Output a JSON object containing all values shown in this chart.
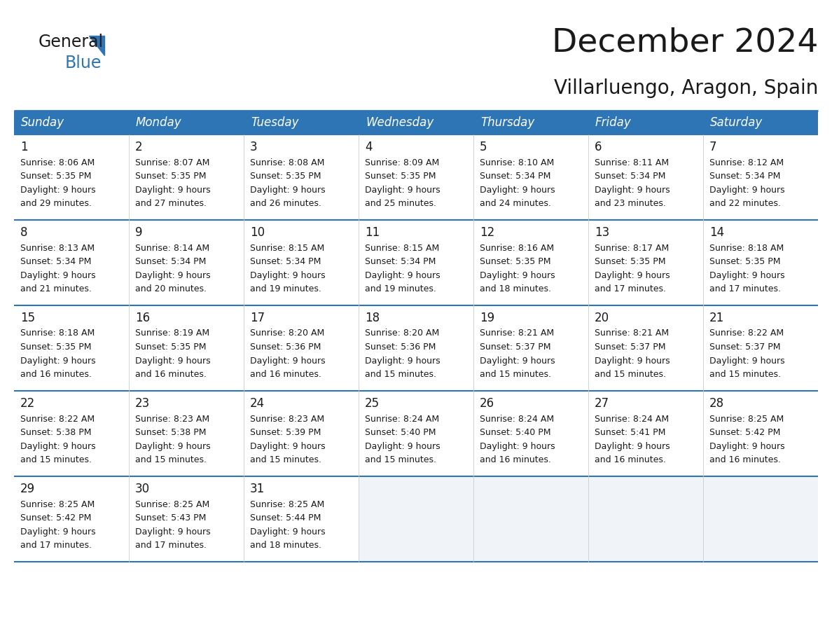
{
  "title": "December 2024",
  "subtitle": "Villarluengo, Aragon, Spain",
  "header_color": "#2E75B6",
  "header_text_color": "#FFFFFF",
  "grid_line_color": "#2E75B6",
  "cell_bg_even": "#FFFFFF",
  "cell_bg_odd": "#EEF3F8",
  "empty_cell_bg": "#F0F0F0",
  "text_color": "#1a1a1a",
  "logo_color_general": "#1a1a1a",
  "logo_color_blue": "#2E75B6",
  "day_names": [
    "Sunday",
    "Monday",
    "Tuesday",
    "Wednesday",
    "Thursday",
    "Friday",
    "Saturday"
  ],
  "title_fontsize": 34,
  "subtitle_fontsize": 20,
  "day_header_fontsize": 12,
  "cell_day_fontsize": 12,
  "cell_text_fontsize": 9,
  "weeks": [
    {
      "days": [
        {
          "date": 1,
          "sunrise": "8:06 AM",
          "sunset": "5:35 PM",
          "daylight_hours": 9,
          "daylight_minutes": 29
        },
        {
          "date": 2,
          "sunrise": "8:07 AM",
          "sunset": "5:35 PM",
          "daylight_hours": 9,
          "daylight_minutes": 27
        },
        {
          "date": 3,
          "sunrise": "8:08 AM",
          "sunset": "5:35 PM",
          "daylight_hours": 9,
          "daylight_minutes": 26
        },
        {
          "date": 4,
          "sunrise": "8:09 AM",
          "sunset": "5:35 PM",
          "daylight_hours": 9,
          "daylight_minutes": 25
        },
        {
          "date": 5,
          "sunrise": "8:10 AM",
          "sunset": "5:34 PM",
          "daylight_hours": 9,
          "daylight_minutes": 24
        },
        {
          "date": 6,
          "sunrise": "8:11 AM",
          "sunset": "5:34 PM",
          "daylight_hours": 9,
          "daylight_minutes": 23
        },
        {
          "date": 7,
          "sunrise": "8:12 AM",
          "sunset": "5:34 PM",
          "daylight_hours": 9,
          "daylight_minutes": 22
        }
      ]
    },
    {
      "days": [
        {
          "date": 8,
          "sunrise": "8:13 AM",
          "sunset": "5:34 PM",
          "daylight_hours": 9,
          "daylight_minutes": 21
        },
        {
          "date": 9,
          "sunrise": "8:14 AM",
          "sunset": "5:34 PM",
          "daylight_hours": 9,
          "daylight_minutes": 20
        },
        {
          "date": 10,
          "sunrise": "8:15 AM",
          "sunset": "5:34 PM",
          "daylight_hours": 9,
          "daylight_minutes": 19
        },
        {
          "date": 11,
          "sunrise": "8:15 AM",
          "sunset": "5:34 PM",
          "daylight_hours": 9,
          "daylight_minutes": 19
        },
        {
          "date": 12,
          "sunrise": "8:16 AM",
          "sunset": "5:35 PM",
          "daylight_hours": 9,
          "daylight_minutes": 18
        },
        {
          "date": 13,
          "sunrise": "8:17 AM",
          "sunset": "5:35 PM",
          "daylight_hours": 9,
          "daylight_minutes": 17
        },
        {
          "date": 14,
          "sunrise": "8:18 AM",
          "sunset": "5:35 PM",
          "daylight_hours": 9,
          "daylight_minutes": 17
        }
      ]
    },
    {
      "days": [
        {
          "date": 15,
          "sunrise": "8:18 AM",
          "sunset": "5:35 PM",
          "daylight_hours": 9,
          "daylight_minutes": 16
        },
        {
          "date": 16,
          "sunrise": "8:19 AM",
          "sunset": "5:35 PM",
          "daylight_hours": 9,
          "daylight_minutes": 16
        },
        {
          "date": 17,
          "sunrise": "8:20 AM",
          "sunset": "5:36 PM",
          "daylight_hours": 9,
          "daylight_minutes": 16
        },
        {
          "date": 18,
          "sunrise": "8:20 AM",
          "sunset": "5:36 PM",
          "daylight_hours": 9,
          "daylight_minutes": 15
        },
        {
          "date": 19,
          "sunrise": "8:21 AM",
          "sunset": "5:37 PM",
          "daylight_hours": 9,
          "daylight_minutes": 15
        },
        {
          "date": 20,
          "sunrise": "8:21 AM",
          "sunset": "5:37 PM",
          "daylight_hours": 9,
          "daylight_minutes": 15
        },
        {
          "date": 21,
          "sunrise": "8:22 AM",
          "sunset": "5:37 PM",
          "daylight_hours": 9,
          "daylight_minutes": 15
        }
      ]
    },
    {
      "days": [
        {
          "date": 22,
          "sunrise": "8:22 AM",
          "sunset": "5:38 PM",
          "daylight_hours": 9,
          "daylight_minutes": 15
        },
        {
          "date": 23,
          "sunrise": "8:23 AM",
          "sunset": "5:38 PM",
          "daylight_hours": 9,
          "daylight_minutes": 15
        },
        {
          "date": 24,
          "sunrise": "8:23 AM",
          "sunset": "5:39 PM",
          "daylight_hours": 9,
          "daylight_minutes": 15
        },
        {
          "date": 25,
          "sunrise": "8:24 AM",
          "sunset": "5:40 PM",
          "daylight_hours": 9,
          "daylight_minutes": 15
        },
        {
          "date": 26,
          "sunrise": "8:24 AM",
          "sunset": "5:40 PM",
          "daylight_hours": 9,
          "daylight_minutes": 16
        },
        {
          "date": 27,
          "sunrise": "8:24 AM",
          "sunset": "5:41 PM",
          "daylight_hours": 9,
          "daylight_minutes": 16
        },
        {
          "date": 28,
          "sunrise": "8:25 AM",
          "sunset": "5:42 PM",
          "daylight_hours": 9,
          "daylight_minutes": 16
        }
      ]
    },
    {
      "days": [
        {
          "date": 29,
          "sunrise": "8:25 AM",
          "sunset": "5:42 PM",
          "daylight_hours": 9,
          "daylight_minutes": 17
        },
        {
          "date": 30,
          "sunrise": "8:25 AM",
          "sunset": "5:43 PM",
          "daylight_hours": 9,
          "daylight_minutes": 17
        },
        {
          "date": 31,
          "sunrise": "8:25 AM",
          "sunset": "5:44 PM",
          "daylight_hours": 9,
          "daylight_minutes": 18
        },
        null,
        null,
        null,
        null
      ]
    }
  ]
}
